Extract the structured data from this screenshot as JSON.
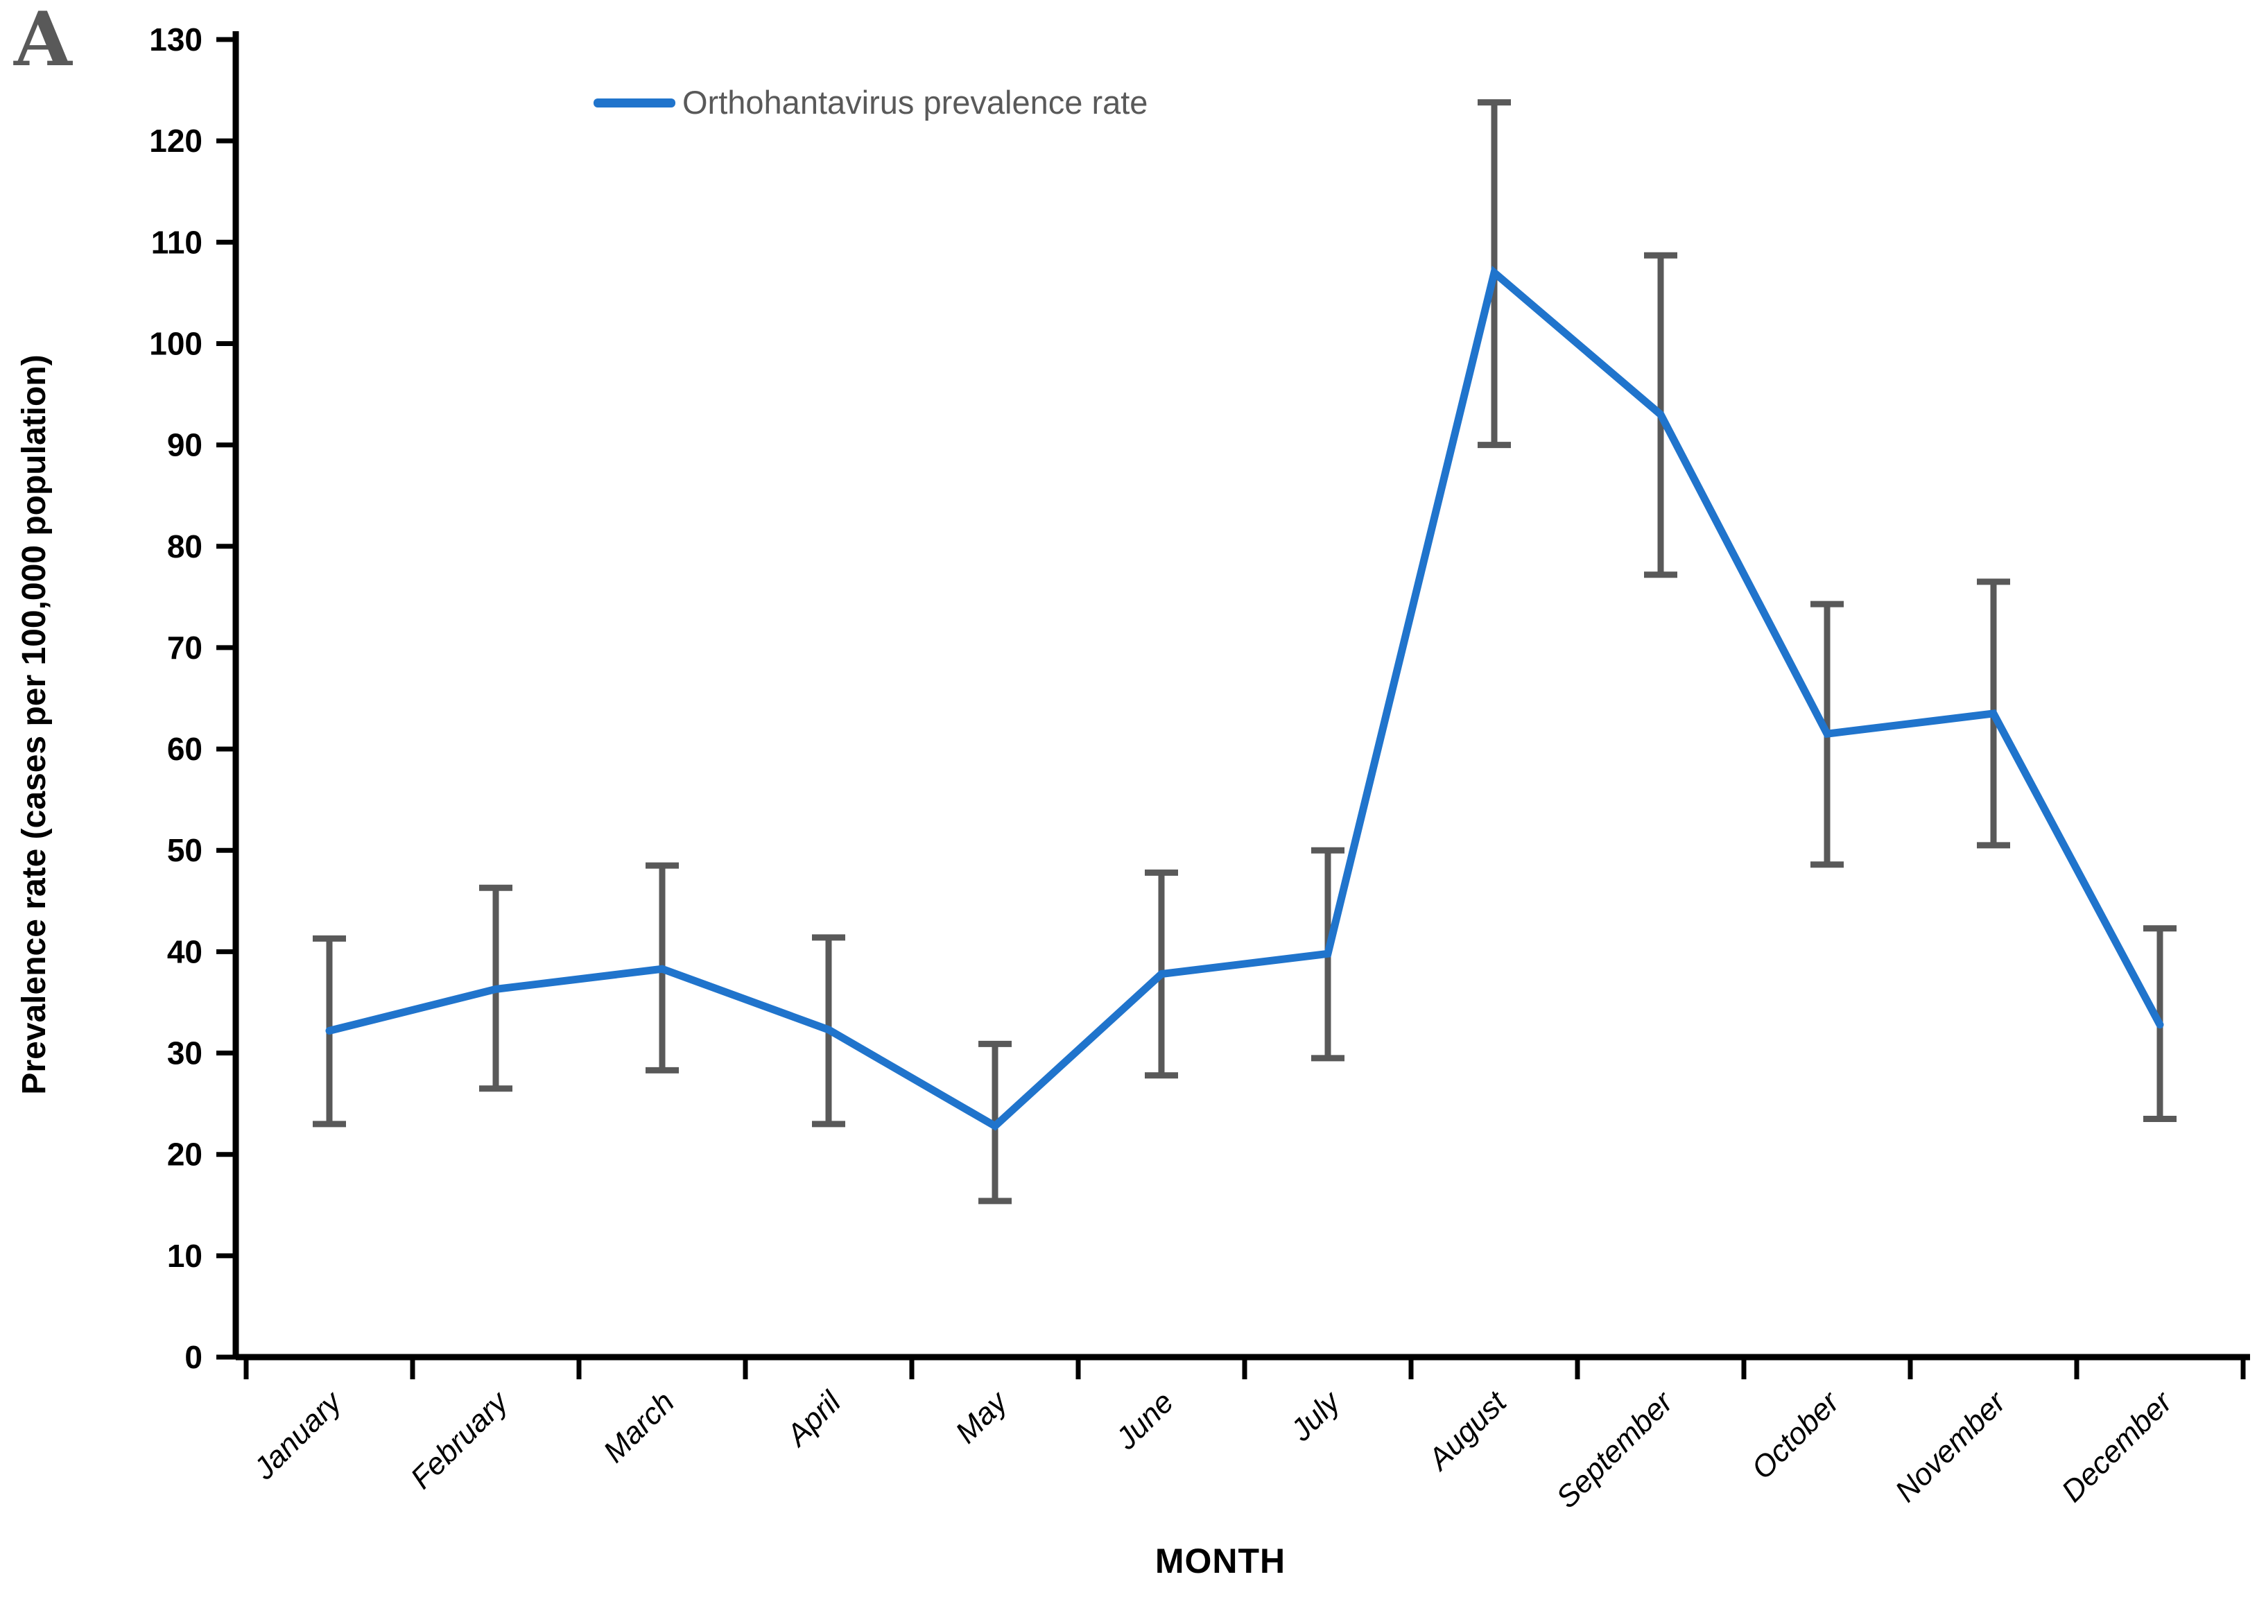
{
  "panel_label": "A",
  "legend": {
    "label": "Orthohantavirus prevalence rate"
  },
  "chart_data": {
    "type": "line",
    "title": "",
    "xlabel": "MONTH",
    "ylabel": "Prevalence rate (cases per 100,000 population)",
    "categories": [
      "January",
      "February",
      "March",
      "April",
      "May",
      "June",
      "July",
      "August",
      "September",
      "October",
      "November",
      "December"
    ],
    "series": [
      {
        "name": "Orthohantavirus prevalence rate",
        "values": [
          32.2,
          36.3,
          38.3,
          32.3,
          22.8,
          37.8,
          39.8,
          107.0,
          93.0,
          61.5,
          63.5,
          32.8
        ],
        "err_high": [
          41.3,
          46.3,
          48.5,
          41.4,
          30.9,
          47.8,
          50.0,
          123.8,
          108.7,
          74.3,
          76.5,
          42.3
        ],
        "err_low": [
          23.0,
          26.5,
          28.3,
          23.0,
          15.4,
          27.8,
          29.5,
          90.0,
          77.2,
          48.6,
          50.5,
          23.5
        ]
      }
    ],
    "ylim": [
      0,
      130
    ],
    "ytick_step": 10,
    "grid": false,
    "legend_position": "top-center",
    "colors": {
      "line": "#2074CC",
      "error_bar": "#595959",
      "axis": "#000000",
      "tick_label": "#000000",
      "legend_text": "#595959",
      "panel_label": "#595959"
    }
  }
}
